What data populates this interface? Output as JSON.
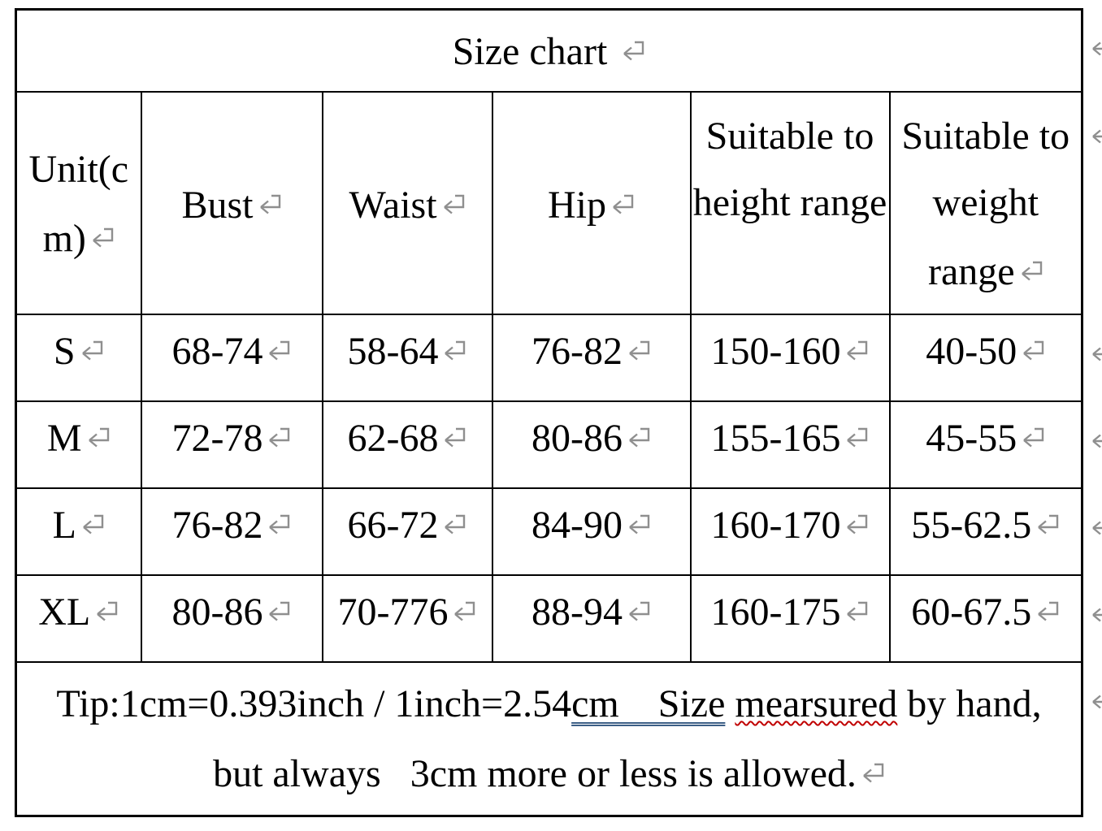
{
  "title_row": {
    "text": "Size chart"
  },
  "header_row": {
    "cells": [
      {
        "id": "unit",
        "lines": [
          "Unit(c",
          "m)"
        ],
        "mark": true
      },
      {
        "id": "bust",
        "lines": [
          "Bust"
        ],
        "mark": true
      },
      {
        "id": "waist",
        "lines": [
          "Waist"
        ],
        "mark": true
      },
      {
        "id": "hip",
        "lines": [
          "Hip"
        ],
        "mark": true
      },
      {
        "id": "height-range",
        "lines": [
          "Suitable to",
          "height range",
          ""
        ],
        "mark": false
      },
      {
        "id": "weight-range",
        "lines": [
          "Suitable to",
          "weight",
          "range"
        ],
        "mark": true
      }
    ]
  },
  "size_rows": [
    {
      "cells": [
        "S",
        "68-74",
        "58-64",
        "76-82",
        "150-160",
        "40-50"
      ]
    },
    {
      "cells": [
        "M",
        "72-78",
        "62-68",
        "80-86",
        "155-165",
        "45-55"
      ]
    },
    {
      "cells": [
        "L",
        "76-82",
        "66-72",
        "84-90",
        "160-170",
        "55-62.5"
      ]
    },
    {
      "cells": [
        "XL",
        "80-86",
        "70-776",
        "88-94",
        "160-175",
        "60-67.5"
      ]
    }
  ],
  "tip_row": {
    "line1_segments": [
      {
        "text": "Tip:1cm=0.393inch / 1inch=2.54",
        "style": "plain"
      },
      {
        "text": "cm    Size",
        "style": "double"
      },
      {
        "text": " ",
        "style": "plain"
      },
      {
        "text": "mearsured",
        "style": "wavy"
      },
      {
        "text": " by hand,",
        "style": "plain"
      }
    ],
    "line2": "but always   3cm more or less is allowed."
  },
  "icons": {
    "end_of_cell_mark": "return-mark",
    "end_of_row_mark": "return-mark-clipped"
  },
  "colors": {
    "text": "#000000",
    "table_border": "#000000",
    "end_mark": "#8f8f8f",
    "double_underline": "#3c5f86",
    "wavy_underline": "#c00000"
  }
}
